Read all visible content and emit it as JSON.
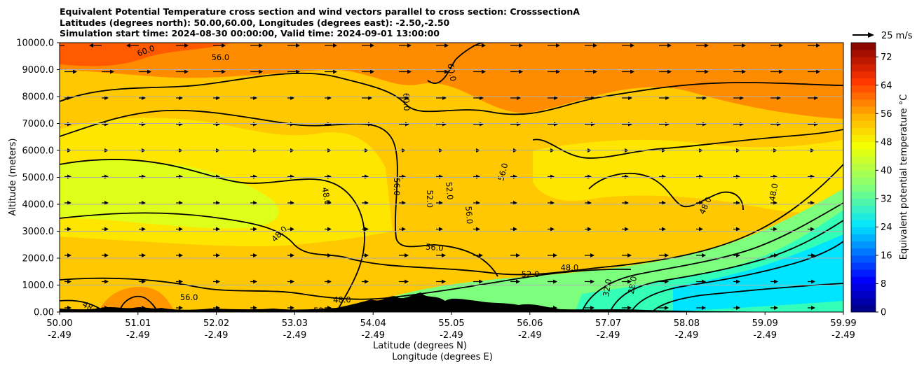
{
  "chart_data": {
    "type": "heatmap",
    "title_lines": [
      "Equivalent Potential Temperature cross section and wind vectors parallel to cross section: CrosssectionA",
      "Latitudes (degrees north): 50.00,60.00, Longitudes (degrees east): -2.50,-2.50",
      "Simulation start time: 2024-08-30 00:00:00, Valid time: 2024-09-01 13:00:00"
    ],
    "ylabel": "Altitude (meters)",
    "xlabel_lines": [
      "Latitude (degrees N)",
      "Longitude (degrees E)"
    ],
    "ylim": [
      0,
      10000
    ],
    "y_ticks": [
      "0.00",
      "1000.0",
      "2000.0",
      "3000.0",
      "4000.0",
      "5000.0",
      "6000.0",
      "7000.0",
      "8000.0",
      "9000.0",
      "10000.0"
    ],
    "x_ticks": [
      {
        "lat": "50.00",
        "lon": "-2.49"
      },
      {
        "lat": "51.01",
        "lon": "-2.49"
      },
      {
        "lat": "52.02",
        "lon": "-2.49"
      },
      {
        "lat": "53.03",
        "lon": "-2.49"
      },
      {
        "lat": "54.04",
        "lon": "-2.49"
      },
      {
        "lat": "55.05",
        "lon": "-2.49"
      },
      {
        "lat": "56.06",
        "lon": "-2.49"
      },
      {
        "lat": "57.07",
        "lon": "-2.49"
      },
      {
        "lat": "58.08",
        "lon": "-2.49"
      },
      {
        "lat": "59.09",
        "lon": "-2.49"
      },
      {
        "lat": "59.99",
        "lon": "-2.49"
      }
    ],
    "colorbar": {
      "label": "Equivalent potential temperature $^\\circ$C",
      "label_display": "Equivalent potential temperature °C",
      "range": [
        0,
        76
      ],
      "ticks": [
        "0",
        "8",
        "16",
        "24",
        "32",
        "40",
        "48",
        "56",
        "64",
        "72"
      ]
    },
    "wind_key": "25 m/s",
    "gridlines": "horizontal",
    "contour_labels": [
      {
        "text": "60.0",
        "x": 51.1,
        "y": 9700,
        "rot": -20
      },
      {
        "text": "56.0",
        "x": 52.05,
        "y": 9450,
        "rot": 0
      },
      {
        "text": "60.0",
        "x": 55.0,
        "y": 8900,
        "rot": 80
      },
      {
        "text": "60.0",
        "x": 54.42,
        "y": 7800,
        "rot": 88
      },
      {
        "text": "56.0",
        "x": 55.65,
        "y": 5200,
        "rot": -75
      },
      {
        "text": "56.0",
        "x": 54.3,
        "y": 4650,
        "rot": 90
      },
      {
        "text": "52.0",
        "x": 54.97,
        "y": 4500,
        "rot": 85
      },
      {
        "text": "52.0",
        "x": 54.72,
        "y": 4200,
        "rot": 90
      },
      {
        "text": "48.0",
        "x": 53.4,
        "y": 4300,
        "rot": 80
      },
      {
        "text": "56.0",
        "x": 55.22,
        "y": 3600,
        "rot": 85
      },
      {
        "text": "48.0",
        "x": 52.8,
        "y": 2900,
        "rot": -45
      },
      {
        "text": "56.0",
        "x": 54.78,
        "y": 2400,
        "rot": 5
      },
      {
        "text": "52.0",
        "x": 56.0,
        "y": 1400,
        "rot": 0
      },
      {
        "text": "48.0",
        "x": 56.5,
        "y": 1650,
        "rot": 0
      },
      {
        "text": "48.0",
        "x": 58.23,
        "y": 3950,
        "rot": -65
      },
      {
        "text": "48.0",
        "x": 59.1,
        "y": 4450,
        "rot": -80
      },
      {
        "text": "32.0",
        "x": 56.98,
        "y": 900,
        "rot": -80
      },
      {
        "text": "28.0",
        "x": 57.3,
        "y": 1000,
        "rot": -80
      },
      {
        "text": "56.0",
        "x": 51.65,
        "y": 550,
        "rot": 0
      },
      {
        "text": "48.0",
        "x": 53.6,
        "y": 450,
        "rot": 0
      },
      {
        "text": "52.0",
        "x": 53.35,
        "y": 50,
        "rot": 0
      },
      {
        "text": "48.0",
        "x": 50.4,
        "y": 150,
        "rot": 30
      }
    ]
  }
}
